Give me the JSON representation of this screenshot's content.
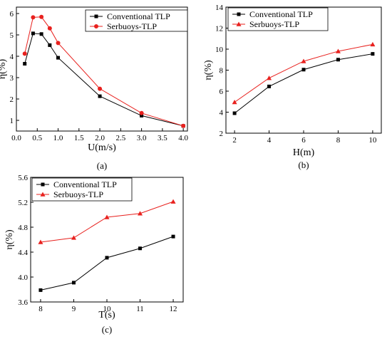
{
  "chart_data": [
    {
      "id": "a",
      "panel_label": "(a)",
      "type": "line",
      "xlabel": "U(m/s)",
      "ylabel": "η(%)",
      "xlim": [
        0,
        4.1
      ],
      "ylim": [
        0.5,
        6.3
      ],
      "xticks": [
        0,
        0.5,
        1,
        1.5,
        2,
        2.5,
        3,
        3.5,
        4
      ],
      "xtick_labels": [
        "0.0",
        "0.5",
        "1.0",
        "1.5",
        "2.0",
        "2.5",
        "3.0",
        "3.5",
        "4.0"
      ],
      "yticks": [
        1,
        2,
        3,
        4,
        5,
        6
      ],
      "ytick_labels": [
        "1",
        "2",
        "3",
        "4",
        "5",
        "6"
      ],
      "legend_position": "top-right",
      "series": [
        {
          "name": "Conventional TLP",
          "color": "#000000",
          "marker": "square",
          "x": [
            0.2,
            0.4,
            0.6,
            0.8,
            1.0,
            2.0,
            3.0,
            4.0
          ],
          "y": [
            3.65,
            5.07,
            5.04,
            4.52,
            3.93,
            2.13,
            1.22,
            0.74
          ]
        },
        {
          "name": "Serbuoys-TLP",
          "color": "#e8211e",
          "marker": "circle",
          "x": [
            0.2,
            0.4,
            0.6,
            0.8,
            1.0,
            2.0,
            3.0,
            4.0
          ],
          "y": [
            4.12,
            5.82,
            5.84,
            5.31,
            4.62,
            2.48,
            1.34,
            0.74
          ]
        }
      ]
    },
    {
      "id": "b",
      "panel_label": "(b)",
      "type": "line",
      "xlabel": "H(m)",
      "ylabel": "η(%)",
      "xlim": [
        1.5,
        10.5
      ],
      "ylim": [
        2,
        14
      ],
      "xticks": [
        2,
        4,
        6,
        8,
        10
      ],
      "xtick_labels": [
        "2",
        "4",
        "6",
        "8",
        "10"
      ],
      "yticks": [
        2,
        4,
        6,
        8,
        10,
        12,
        14
      ],
      "ytick_labels": [
        "2",
        "4",
        "6",
        "8",
        "10",
        "12",
        "14"
      ],
      "legend_position": "top-left",
      "series": [
        {
          "name": "Conventional TLP",
          "color": "#000000",
          "marker": "square",
          "x": [
            2,
            4,
            6,
            8,
            10
          ],
          "y": [
            3.9,
            6.45,
            8.05,
            9.0,
            9.55
          ]
        },
        {
          "name": "Serbuoys-TLP",
          "color": "#e8211e",
          "marker": "triangle",
          "x": [
            2,
            4,
            6,
            8,
            10
          ],
          "y": [
            4.95,
            7.25,
            8.85,
            9.8,
            10.45
          ]
        }
      ]
    },
    {
      "id": "c",
      "panel_label": "(c)",
      "type": "line",
      "xlabel": "T(s)",
      "ylabel": "η(%)",
      "xlim": [
        7.7,
        12.3
      ],
      "ylim": [
        3.6,
        5.6
      ],
      "xticks": [
        8,
        9,
        10,
        11,
        12
      ],
      "xtick_labels": [
        "8",
        "9",
        "10",
        "11",
        "12"
      ],
      "yticks": [
        3.6,
        4.0,
        4.4,
        4.8,
        5.2,
        5.6
      ],
      "ytick_labels": [
        "3.6",
        "4.0",
        "4.4",
        "4.8",
        "5.2",
        "5.6"
      ],
      "legend_position": "top-left",
      "series": [
        {
          "name": "Conventional TLP",
          "color": "#000000",
          "marker": "square",
          "x": [
            8,
            9,
            10,
            11,
            12
          ],
          "y": [
            3.79,
            3.91,
            4.31,
            4.46,
            4.65
          ]
        },
        {
          "name": "Serbuoys-TLP",
          "color": "#e8211e",
          "marker": "triangle",
          "x": [
            8,
            9,
            10,
            11,
            12
          ],
          "y": [
            4.56,
            4.63,
            4.96,
            5.02,
            5.21
          ]
        }
      ]
    }
  ]
}
